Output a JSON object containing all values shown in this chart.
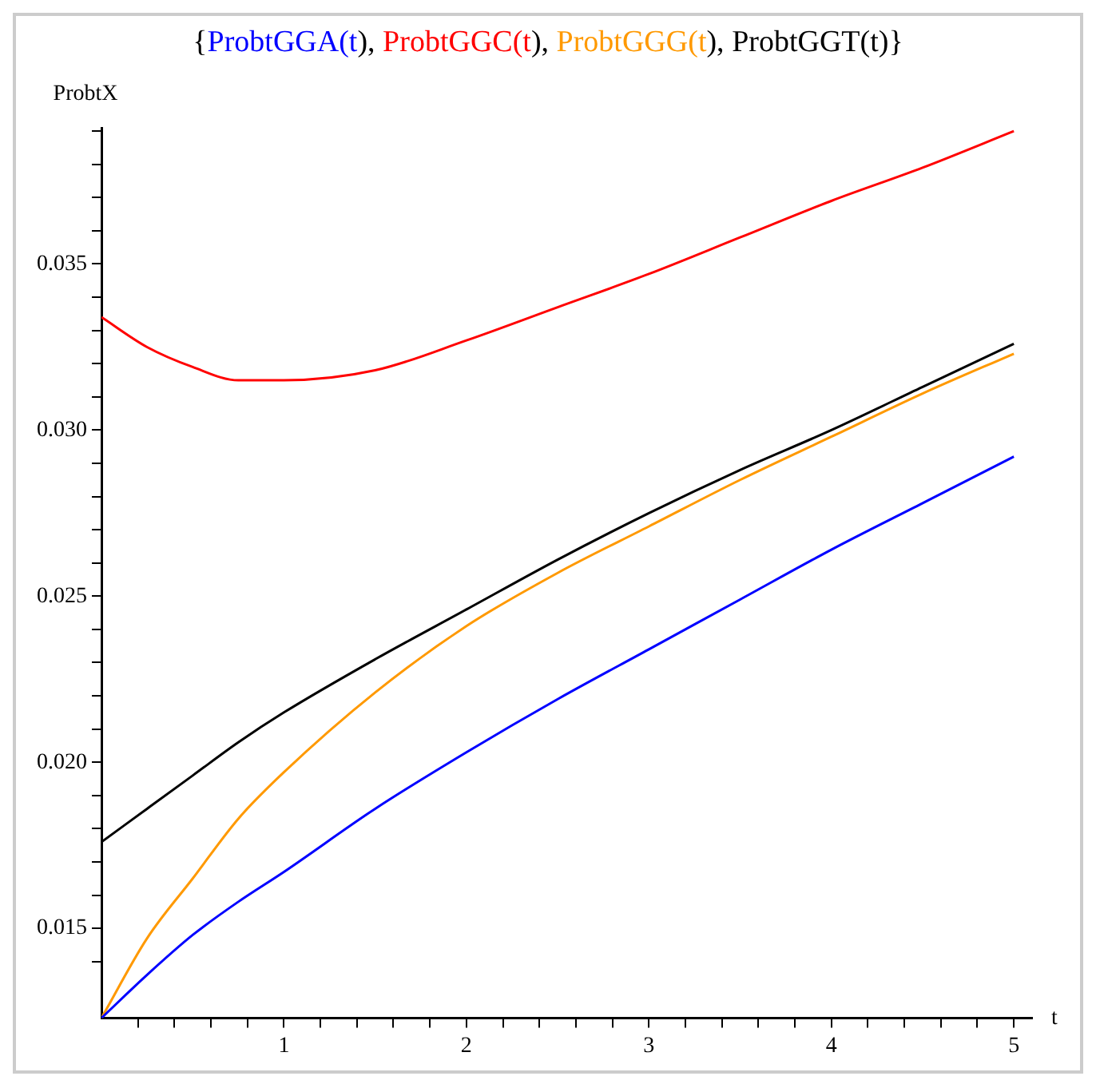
{
  "chart_data": {
    "type": "line",
    "title": "{ProbtGGA(t), ProbtGGC(t), ProbtGGG(t), ProbtGGT(t)}",
    "xlabel": "t",
    "ylabel": "ProbtX",
    "x": [
      0,
      0.25,
      0.5,
      0.75,
      1,
      1.5,
      2,
      2.5,
      3,
      3.5,
      4,
      4.5,
      5
    ],
    "series": [
      {
        "color": "#0000ff",
        "values": [
          0.0123,
          0.0136,
          0.0148,
          0.0158,
          0.0167,
          0.0186,
          0.0203,
          0.0219,
          0.0234,
          0.0249,
          0.0264,
          0.0278,
          0.0292
        ]
      },
      {
        "color": "#ff0000",
        "values": [
          0.0334,
          0.0325,
          0.0319,
          0.0315,
          0.0315,
          0.0318,
          0.0327,
          0.0337,
          0.0347,
          0.0358,
          0.0369,
          0.0379,
          0.039
        ]
      },
      {
        "color": "#ff9900",
        "values": [
          0.0123,
          0.0147,
          0.0165,
          0.0183,
          0.0197,
          0.0221,
          0.0241,
          0.0257,
          0.0271,
          0.0285,
          0.0298,
          0.0311,
          0.0323
        ]
      },
      {
        "color": "#000000",
        "values": [
          0.0176,
          0.0186,
          0.0196,
          0.0206,
          0.0215,
          0.0231,
          0.0246,
          0.0261,
          0.0275,
          0.0288,
          0.03,
          0.0313,
          0.0326
        ]
      }
    ],
    "xlim": [
      0,
      5.1
    ],
    "ylim": [
      0.0123,
      0.0391
    ],
    "xticks": [
      {
        "value": 0.2,
        "label": null
      },
      {
        "value": 0.4,
        "label": null
      },
      {
        "value": 0.6,
        "label": null
      },
      {
        "value": 0.8,
        "label": null
      },
      1,
      {
        "value": 1.2,
        "label": null
      },
      {
        "value": 1.4,
        "label": null
      },
      {
        "value": 1.6,
        "label": null
      },
      {
        "value": 1.8,
        "label": null
      },
      2,
      {
        "value": 2.2,
        "label": null
      },
      {
        "value": 2.4,
        "label": null
      },
      {
        "value": 2.6,
        "label": null
      },
      {
        "value": 2.8,
        "label": null
      },
      3,
      {
        "value": 3.2,
        "label": null
      },
      {
        "value": 3.4,
        "label": null
      },
      {
        "value": 3.6,
        "label": null
      },
      {
        "value": 3.8,
        "label": null
      },
      4,
      {
        "value": 4.2,
        "label": null
      },
      {
        "value": 4.4,
        "label": null
      },
      {
        "value": 4.6,
        "label": null
      },
      {
        "value": 4.8,
        "label": null
      },
      5
    ],
    "yticks": [
      {
        "value": 0.014,
        "label": null
      },
      {
        "value": 0.015,
        "label": "0.015"
      },
      {
        "value": 0.016,
        "label": null
      },
      {
        "value": 0.017,
        "label": null
      },
      {
        "value": 0.018,
        "label": null
      },
      {
        "value": 0.019,
        "label": null
      },
      {
        "value": 0.02,
        "label": "0.020"
      },
      {
        "value": 0.021,
        "label": null
      },
      {
        "value": 0.022,
        "label": null
      },
      {
        "value": 0.023,
        "label": null
      },
      {
        "value": 0.024,
        "label": null
      },
      {
        "value": 0.025,
        "label": "0.025"
      },
      {
        "value": 0.026,
        "label": null
      },
      {
        "value": 0.027,
        "label": null
      },
      {
        "value": 0.028,
        "label": null
      },
      {
        "value": 0.029,
        "label": null
      },
      {
        "value": 0.03,
        "label": "0.030"
      },
      {
        "value": 0.031,
        "label": null
      },
      {
        "value": 0.032,
        "label": null
      },
      {
        "value": 0.033,
        "label": null
      },
      {
        "value": 0.034,
        "label": null
      },
      {
        "value": 0.035,
        "label": "0.035"
      },
      {
        "value": 0.036,
        "label": null
      },
      {
        "value": 0.037,
        "label": null
      },
      {
        "value": 0.038,
        "label": null
      },
      {
        "value": 0.039,
        "label": null
      }
    ],
    "grid": false,
    "marker": "none",
    "line_style": "solid"
  }
}
